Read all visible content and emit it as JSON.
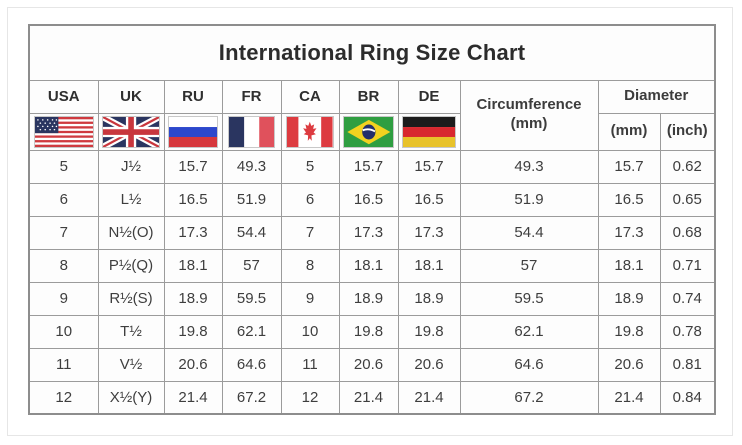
{
  "title": "International Ring Size Chart",
  "header": {
    "countries": [
      {
        "code": "USA",
        "flag": "usa-flag"
      },
      {
        "code": "UK",
        "flag": "uk-flag"
      },
      {
        "code": "RU",
        "flag": "russia-flag"
      },
      {
        "code": "FR",
        "flag": "france-flag"
      },
      {
        "code": "CA",
        "flag": "canada-flag"
      },
      {
        "code": "BR",
        "flag": "brazil-flag"
      },
      {
        "code": "DE",
        "flag": "germany-flag"
      }
    ],
    "circumference": {
      "label": "Circumference",
      "unit": "(mm)"
    },
    "diameter": {
      "label": "Diameter",
      "units": [
        "(mm)",
        "(inch)"
      ]
    }
  },
  "colors": {
    "table_border": "#9b9b9b",
    "text": "#3c3c3c",
    "background": "#ffffff"
  },
  "chart_data": {
    "type": "table",
    "title": "International Ring Size Chart",
    "columns": [
      "USA",
      "UK",
      "RU",
      "FR",
      "CA",
      "BR",
      "DE",
      "Circumference (mm)",
      "Diameter (mm)",
      "Diameter (inch)"
    ],
    "rows": [
      [
        "5",
        "J½",
        "15.7",
        "49.3",
        "5",
        "15.7",
        "15.7",
        "49.3",
        "15.7",
        "0.62"
      ],
      [
        "6",
        "L½",
        "16.5",
        "51.9",
        "6",
        "16.5",
        "16.5",
        "51.9",
        "16.5",
        "0.65"
      ],
      [
        "7",
        "N½(O)",
        "17.3",
        "54.4",
        "7",
        "17.3",
        "17.3",
        "54.4",
        "17.3",
        "0.68"
      ],
      [
        "8",
        "P½(Q)",
        "18.1",
        "57",
        "8",
        "18.1",
        "18.1",
        "57",
        "18.1",
        "0.71"
      ],
      [
        "9",
        "R½(S)",
        "18.9",
        "59.5",
        "9",
        "18.9",
        "18.9",
        "59.5",
        "18.9",
        "0.74"
      ],
      [
        "10",
        "T½",
        "19.8",
        "62.1",
        "10",
        "19.8",
        "19.8",
        "62.1",
        "19.8",
        "0.78"
      ],
      [
        "11",
        "V½",
        "20.6",
        "64.6",
        "11",
        "20.6",
        "20.6",
        "64.6",
        "20.6",
        "0.81"
      ],
      [
        "12",
        "X½(Y)",
        "21.4",
        "67.2",
        "12",
        "21.4",
        "21.4",
        "67.2",
        "21.4",
        "0.84"
      ]
    ]
  }
}
